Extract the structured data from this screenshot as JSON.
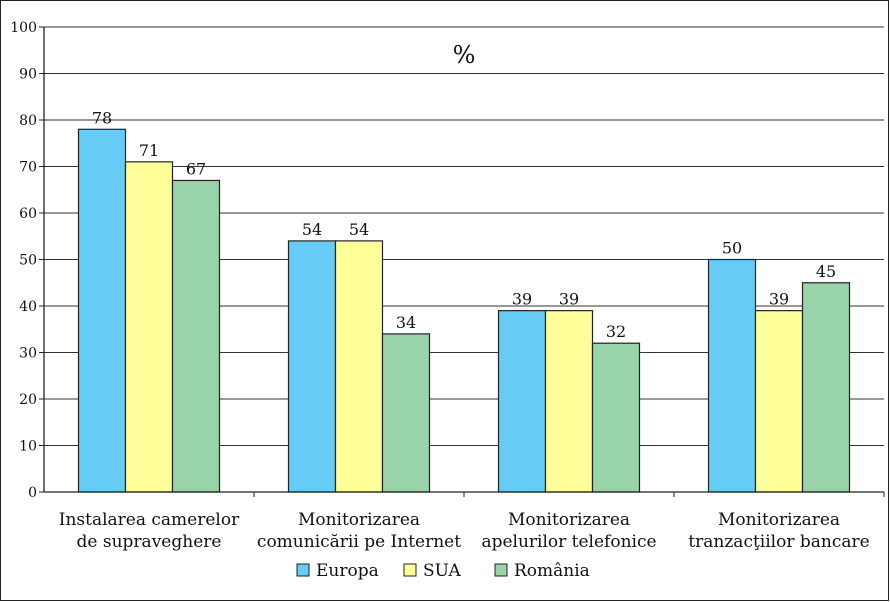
{
  "chart_data": {
    "type": "bar",
    "title": "%",
    "categories": [
      [
        "Instalarea camerelor",
        "de supraveghere"
      ],
      [
        "Monitorizarea",
        "comunicării pe Internet"
      ],
      [
        "Monitorizarea",
        "apelurilor telefonice"
      ],
      [
        "Monitorizarea",
        "tranzacţiilor bancare"
      ]
    ],
    "series": [
      {
        "name": "Europa",
        "color": "#66ccf5",
        "values": [
          78,
          54,
          39,
          50
        ]
      },
      {
        "name": "SUA",
        "color": "#ffff99",
        "values": [
          71,
          54,
          39,
          39
        ]
      },
      {
        "name": "România",
        "color": "#99d3aa",
        "values": [
          67,
          34,
          32,
          45
        ]
      }
    ],
    "ylim": [
      0,
      100
    ],
    "yticks": [
      0,
      10,
      20,
      30,
      40,
      50,
      60,
      70,
      80,
      90,
      100
    ],
    "grid": true,
    "legend_position": "bottom"
  }
}
